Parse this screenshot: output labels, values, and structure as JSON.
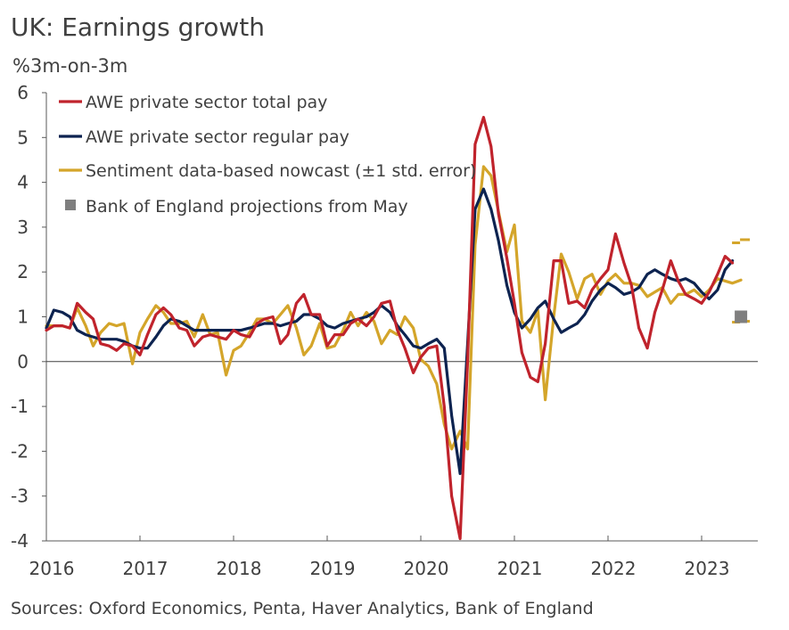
{
  "title": "UK: Earnings growth",
  "subtitle": "%3m-on-3m",
  "source": "Sources: Oxford Economics, Penta, Haver Analytics, Bank of England",
  "chart_data": {
    "type": "line",
    "title": "UK: Earnings growth",
    "ylabel": "%3m-on-3m",
    "ylim": [
      -4,
      6
    ],
    "yticks": [
      6,
      5,
      4,
      3,
      2,
      1,
      0,
      -1,
      -2,
      -3,
      -4
    ],
    "xlim": [
      2016.0,
      2023.7
    ],
    "xticks": [
      "2016",
      "2017",
      "2018",
      "2019",
      "2020",
      "2021",
      "2022",
      "2023"
    ],
    "grid": false,
    "legend_position": "top-left",
    "series": [
      {
        "name": "AWE private sector total pay",
        "color": "#c0232c",
        "x": [
          2016.0,
          2016.08,
          2016.17,
          2016.25,
          2016.33,
          2016.42,
          2016.5,
          2016.58,
          2016.67,
          2016.75,
          2016.83,
          2016.92,
          2017.0,
          2017.08,
          2017.17,
          2017.25,
          2017.33,
          2017.42,
          2017.5,
          2017.58,
          2017.67,
          2017.75,
          2017.83,
          2017.92,
          2018.0,
          2018.08,
          2018.17,
          2018.25,
          2018.33,
          2018.42,
          2018.5,
          2018.58,
          2018.67,
          2018.75,
          2018.83,
          2018.92,
          2019.0,
          2019.08,
          2019.17,
          2019.25,
          2019.33,
          2019.42,
          2019.5,
          2019.58,
          2019.67,
          2019.75,
          2019.83,
          2019.92,
          2020.0,
          2020.08,
          2020.17,
          2020.25,
          2020.33,
          2020.42,
          2020.5,
          2020.58,
          2020.67,
          2020.75,
          2020.83,
          2020.92,
          2021.0,
          2021.08,
          2021.17,
          2021.25,
          2021.33,
          2021.42,
          2021.5,
          2021.58,
          2021.67,
          2021.75,
          2021.83,
          2021.92,
          2022.0,
          2022.08,
          2022.17,
          2022.25,
          2022.33,
          2022.42,
          2022.5,
          2022.58,
          2022.67,
          2022.75,
          2022.83,
          2022.92,
          2023.0,
          2023.08,
          2023.17,
          2023.25,
          2023.33
        ],
        "values": [
          0.7,
          0.8,
          0.8,
          0.75,
          1.3,
          1.1,
          0.95,
          0.4,
          0.35,
          0.25,
          0.4,
          0.35,
          0.15,
          0.6,
          1.05,
          1.2,
          1.05,
          0.75,
          0.7,
          0.35,
          0.55,
          0.6,
          0.55,
          0.5,
          0.7,
          0.6,
          0.55,
          0.85,
          0.95,
          1.0,
          0.4,
          0.6,
          1.3,
          1.5,
          1.05,
          1.05,
          0.35,
          0.6,
          0.6,
          0.85,
          0.95,
          0.8,
          1.0,
          1.3,
          1.35,
          0.7,
          0.3,
          -0.25,
          0.1,
          0.3,
          0.35,
          -1.0,
          -3.0,
          -3.95,
          0.0,
          4.85,
          5.45,
          4.8,
          3.3,
          2.3,
          1.3,
          0.2,
          -0.35,
          -0.45,
          0.4,
          2.25,
          2.25,
          1.3,
          1.35,
          1.2,
          1.6,
          1.85,
          2.05,
          2.85,
          2.2,
          1.7,
          0.75,
          0.3,
          1.1,
          1.6,
          2.25,
          1.8,
          1.5,
          1.4,
          1.3,
          1.55,
          1.95,
          2.35,
          2.2
        ]
      },
      {
        "name": "AWE private sector regular pay",
        "color": "#0d2350",
        "x": [
          2016.0,
          2016.08,
          2016.17,
          2016.25,
          2016.33,
          2016.42,
          2016.5,
          2016.58,
          2016.67,
          2016.75,
          2016.83,
          2016.92,
          2017.0,
          2017.08,
          2017.17,
          2017.25,
          2017.33,
          2017.42,
          2017.5,
          2017.58,
          2017.67,
          2017.75,
          2017.83,
          2017.92,
          2018.0,
          2018.08,
          2018.17,
          2018.25,
          2018.33,
          2018.42,
          2018.5,
          2018.58,
          2018.67,
          2018.75,
          2018.83,
          2018.92,
          2019.0,
          2019.08,
          2019.17,
          2019.25,
          2019.33,
          2019.42,
          2019.5,
          2019.58,
          2019.67,
          2019.75,
          2019.83,
          2019.92,
          2020.0,
          2020.08,
          2020.17,
          2020.25,
          2020.33,
          2020.42,
          2020.5,
          2020.58,
          2020.67,
          2020.75,
          2020.83,
          2020.92,
          2021.0,
          2021.08,
          2021.17,
          2021.25,
          2021.33,
          2021.42,
          2021.5,
          2021.58,
          2021.67,
          2021.75,
          2021.83,
          2021.92,
          2022.0,
          2022.08,
          2022.17,
          2022.25,
          2022.33,
          2022.42,
          2022.5,
          2022.58,
          2022.67,
          2022.75,
          2022.83,
          2022.92,
          2023.0,
          2023.08,
          2023.17,
          2023.25,
          2023.33
        ],
        "values": [
          0.75,
          1.15,
          1.1,
          1.0,
          0.7,
          0.6,
          0.55,
          0.5,
          0.5,
          0.5,
          0.45,
          0.35,
          0.3,
          0.3,
          0.55,
          0.8,
          0.95,
          0.9,
          0.8,
          0.7,
          0.7,
          0.7,
          0.7,
          0.7,
          0.7,
          0.7,
          0.75,
          0.8,
          0.85,
          0.85,
          0.8,
          0.85,
          0.9,
          1.05,
          1.05,
          0.95,
          0.8,
          0.75,
          0.85,
          0.9,
          0.95,
          1.0,
          1.1,
          1.25,
          1.1,
          0.8,
          0.6,
          0.35,
          0.3,
          0.4,
          0.5,
          0.3,
          -1.2,
          -2.5,
          0.4,
          3.4,
          3.85,
          3.4,
          2.7,
          1.7,
          1.1,
          0.75,
          0.95,
          1.2,
          1.35,
          0.95,
          0.65,
          0.75,
          0.85,
          1.05,
          1.35,
          1.6,
          1.75,
          1.65,
          1.5,
          1.55,
          1.65,
          1.95,
          2.05,
          1.95,
          1.85,
          1.8,
          1.85,
          1.75,
          1.55,
          1.4,
          1.6,
          2.05,
          2.25
        ]
      },
      {
        "name": "Sentiment data-based nowcast (±1 std. error)",
        "color": "#d4a52a",
        "x": [
          2016.0,
          2016.08,
          2016.17,
          2016.25,
          2016.33,
          2016.42,
          2016.5,
          2016.58,
          2016.67,
          2016.75,
          2016.83,
          2016.92,
          2017.0,
          2017.08,
          2017.17,
          2017.25,
          2017.33,
          2017.42,
          2017.5,
          2017.58,
          2017.67,
          2017.75,
          2017.83,
          2017.92,
          2018.0,
          2018.08,
          2018.17,
          2018.25,
          2018.33,
          2018.42,
          2018.5,
          2018.58,
          2018.67,
          2018.75,
          2018.83,
          2018.92,
          2019.0,
          2019.08,
          2019.17,
          2019.25,
          2019.33,
          2019.42,
          2019.5,
          2019.58,
          2019.67,
          2019.75,
          2019.83,
          2019.92,
          2020.0,
          2020.08,
          2020.17,
          2020.25,
          2020.33,
          2020.42,
          2020.5,
          2020.58,
          2020.67,
          2020.75,
          2020.83,
          2020.92,
          2021.0,
          2021.08,
          2021.17,
          2021.25,
          2021.33,
          2021.42,
          2021.5,
          2021.58,
          2021.67,
          2021.75,
          2021.83,
          2021.92,
          2022.0,
          2022.08,
          2022.17,
          2022.25,
          2022.33,
          2022.42,
          2022.5,
          2022.58,
          2022.67,
          2022.75,
          2022.83,
          2022.92,
          2023.0,
          2023.08,
          2023.17,
          2023.25,
          2023.33,
          2023.42
        ],
        "values": [
          0.8,
          0.8,
          0.8,
          0.75,
          1.2,
          0.8,
          0.35,
          0.65,
          0.85,
          0.8,
          0.85,
          -0.05,
          0.65,
          0.95,
          1.25,
          1.1,
          0.85,
          0.85,
          0.9,
          0.55,
          1.05,
          0.6,
          0.65,
          -0.3,
          0.25,
          0.35,
          0.65,
          0.95,
          0.95,
          0.85,
          1.05,
          1.25,
          0.75,
          0.15,
          0.35,
          0.85,
          0.3,
          0.35,
          0.7,
          1.1,
          0.8,
          1.1,
          0.9,
          0.4,
          0.7,
          0.6,
          1.0,
          0.75,
          0.05,
          -0.1,
          -0.5,
          -1.4,
          -1.95,
          -1.55,
          -1.95,
          2.6,
          4.35,
          4.15,
          3.35,
          2.45,
          3.05,
          0.9,
          0.65,
          1.15,
          -0.85,
          1.0,
          2.4,
          2.0,
          1.4,
          1.85,
          1.95,
          1.5,
          1.8,
          1.95,
          1.75,
          1.75,
          1.7,
          1.45,
          1.55,
          1.65,
          1.3,
          1.5,
          1.5,
          1.6,
          1.45,
          1.6,
          1.85,
          1.8,
          1.75,
          1.82
        ]
      },
      {
        "name": "Bank of England projections from May",
        "color": "#7f7f7f",
        "type": "marker",
        "x": [
          2023.42
        ],
        "values": [
          1.0
        ]
      }
    ],
    "nowcast_error_band": {
      "color": "#d4a52a",
      "x": 2023.42,
      "upper": [
        2.65,
        2.72
      ],
      "lower": [
        0.88,
        0.9
      ]
    }
  }
}
